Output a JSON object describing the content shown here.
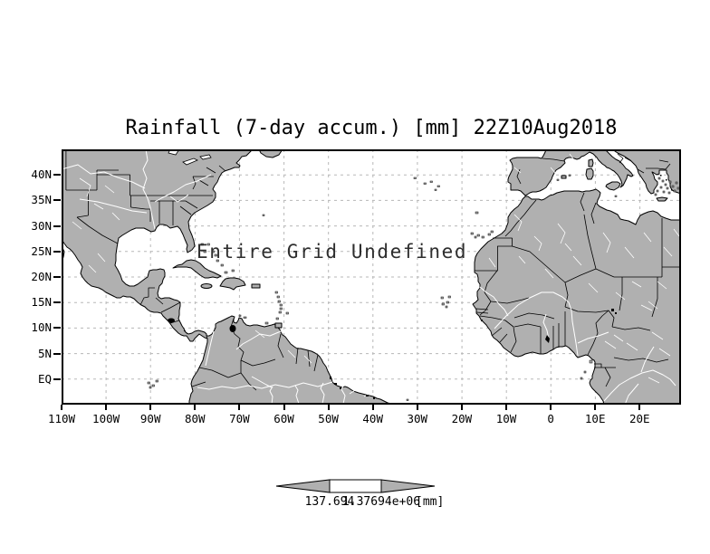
{
  "title": "Rainfall (7-day accum.) [mm] 22Z10Aug2018",
  "plot": {
    "overlay_message": "Entire Grid Undefined",
    "y_axis": {
      "ticks": [
        "40N",
        "35N",
        "30N",
        "25N",
        "20N",
        "15N",
        "10N",
        "5N",
        "EQ"
      ]
    },
    "x_axis": {
      "ticks": [
        "110W",
        "100W",
        "90W",
        "80W",
        "70W",
        "60W",
        "50W",
        "40W",
        "30W",
        "20W",
        "10W",
        "0",
        "10E",
        "20E"
      ]
    },
    "colors": {
      "land": "#b0b0b0",
      "ocean": "#ffffff",
      "coastline": "#000000",
      "gridline": "#b8b8b8",
      "river": "#ffffff",
      "lake": "#000000"
    }
  },
  "colorbar": {
    "left_label": "137.694",
    "right_label": "1.37694e+06",
    "unit_label": "[mm]",
    "arrow_color": "#b0b0b0",
    "box_color": "#ffffff"
  }
}
